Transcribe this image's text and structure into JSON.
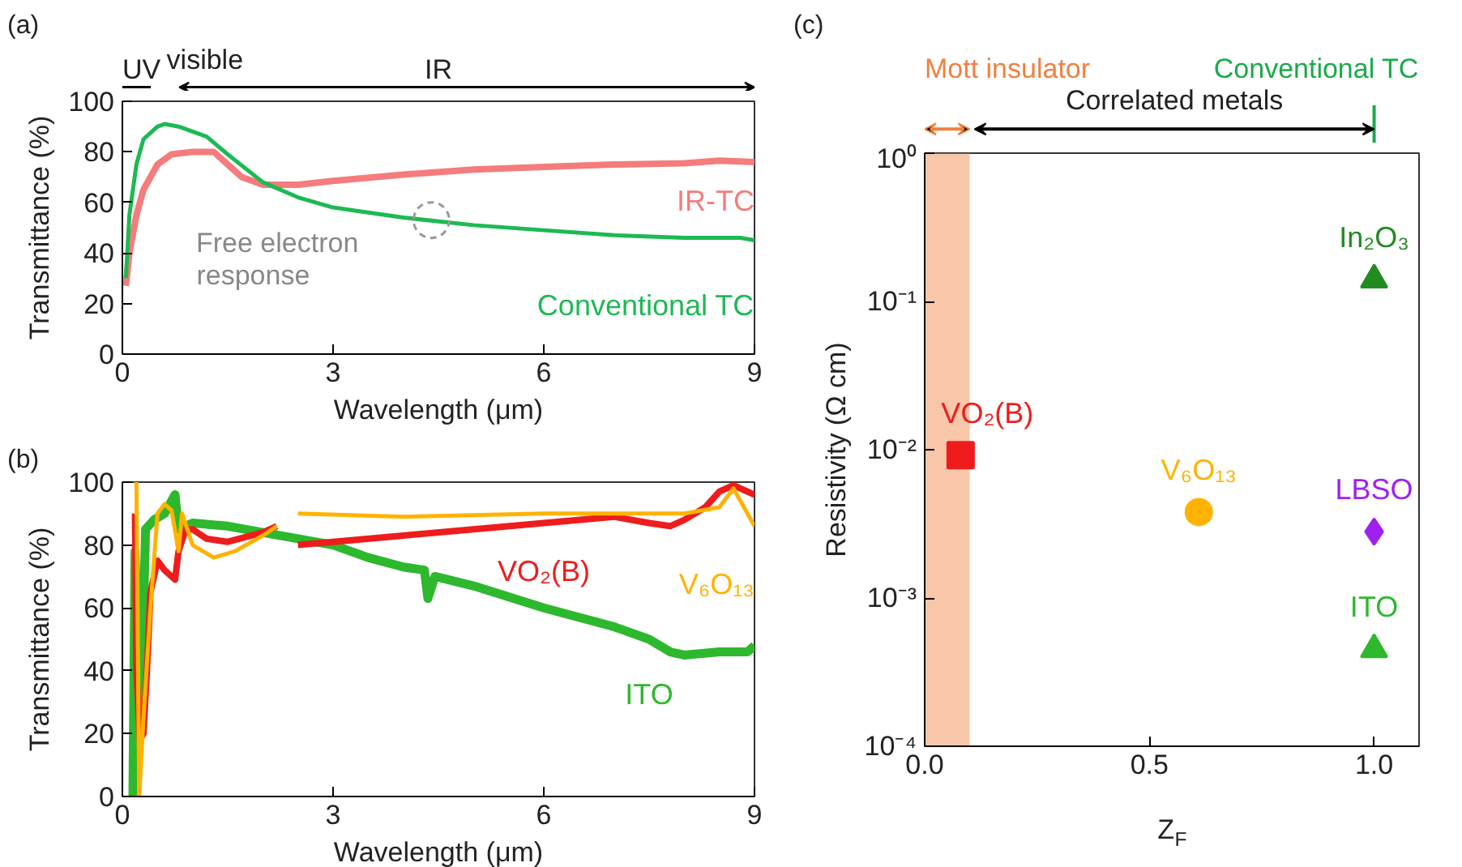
{
  "chart_data": [
    {
      "type": "line",
      "title": "(a)",
      "xlabel": "Wavelength (μm)",
      "ylabel": "Transmittance (%)",
      "xlim": [
        0,
        9
      ],
      "ylim": [
        0,
        100
      ],
      "xticks": [
        0,
        3,
        6,
        9
      ],
      "yticks": [
        0,
        20,
        40,
        60,
        80,
        100
      ],
      "grid": false,
      "legend": false,
      "annotations": [
        "UV",
        "visible",
        "IR",
        {
          "text": "Free electron response",
          "x": 4.4,
          "y": 53
        }
      ],
      "series": [
        {
          "name": "IR-TC",
          "color": "#f47c7c",
          "x": [
            0.05,
            0.1,
            0.2,
            0.3,
            0.5,
            0.7,
            1.0,
            1.3,
            1.5,
            1.7,
            2.0,
            2.5,
            3.0,
            4.0,
            5.0,
            6.0,
            7.0,
            8.0,
            8.5,
            9.0
          ],
          "values": [
            27,
            40,
            55,
            65,
            75,
            79,
            80,
            80,
            75,
            70,
            67,
            67,
            68.5,
            71,
            73,
            74,
            75,
            75.5,
            76.5,
            76
          ]
        },
        {
          "name": "Conventional TC",
          "color": "#1db954",
          "x": [
            0.05,
            0.1,
            0.2,
            0.3,
            0.5,
            0.6,
            0.8,
            1.0,
            1.2,
            1.5,
            2.0,
            2.5,
            3.0,
            4.0,
            5.0,
            6.0,
            7.0,
            8.0,
            8.8,
            9.0
          ],
          "values": [
            30,
            55,
            75,
            85,
            90,
            91,
            90,
            88,
            86,
            79,
            68,
            62,
            58,
            54,
            51,
            49,
            47,
            46,
            46,
            45
          ]
        }
      ]
    },
    {
      "type": "line",
      "title": "(b)",
      "xlabel": "Wavelength (μm)",
      "ylabel": "Transmittance (%)",
      "xlim": [
        0,
        9
      ],
      "ylim": [
        0,
        100
      ],
      "xticks": [
        0,
        3,
        6,
        9
      ],
      "yticks": [
        0,
        20,
        40,
        60,
        80,
        100
      ],
      "grid": false,
      "legend": false,
      "series": [
        {
          "name": "ITO",
          "color": "#2db82d",
          "x": [
            0.15,
            0.18,
            0.22,
            0.27,
            0.33,
            0.45,
            0.6,
            0.75,
            0.8,
            1.0,
            1.5,
            2.0,
            2.5,
            3.0,
            3.5,
            4.0,
            4.3,
            4.35,
            4.45,
            5.0,
            6.0,
            7.0,
            7.5,
            7.8,
            8.0,
            8.5,
            8.9,
            9.0
          ],
          "values": [
            0,
            78,
            40,
            30,
            85,
            88,
            90,
            96,
            85,
            87,
            86,
            84,
            82,
            80,
            76,
            73,
            72,
            63,
            70,
            67,
            60,
            54,
            50,
            46,
            45,
            46,
            46,
            48
          ]
        },
        {
          "name": "VO₂(B)",
          "color": "#ee1c1c",
          "x": [
            0.18,
            0.2,
            0.25,
            0.3,
            0.35,
            0.4,
            0.5,
            0.6,
            0.75,
            0.8,
            0.9,
            1.0,
            1.2,
            1.5,
            2.0,
            2.2,
            2.35,
            2.5,
            3.0,
            4.0,
            5.0,
            6.0,
            7.0,
            7.5,
            7.8,
            8.0,
            8.3,
            8.5,
            8.7,
            9.0
          ],
          "values": [
            90,
            40,
            18,
            20,
            40,
            65,
            75,
            72,
            69,
            78,
            85,
            85,
            82,
            81,
            84,
            86,
            null,
            80,
            81,
            83,
            85,
            87,
            89,
            87,
            86,
            88,
            92,
            97,
            99,
            96
          ]
        },
        {
          "name": "V₆O₁₃",
          "color": "#ffb300",
          "x": [
            0.2,
            0.24,
            0.3,
            0.4,
            0.5,
            0.6,
            0.7,
            0.8,
            0.85,
            1.0,
            1.3,
            1.6,
            2.0,
            2.2,
            2.35,
            2.5,
            4.0,
            6.0,
            8.0,
            8.5,
            8.7,
            9.0
          ],
          "values": [
            100,
            0,
            25,
            60,
            90,
            93,
            91,
            78,
            90,
            80,
            76,
            78,
            83,
            86,
            null,
            90,
            89,
            90,
            90,
            92,
            98,
            86
          ]
        }
      ]
    },
    {
      "type": "scatter",
      "title": "(c)",
      "xlabel": "Z$_{F}$",
      "ylabel": "Resistivity (Ω cm)",
      "log": "y",
      "xlim": [
        0,
        1.1
      ],
      "ylim": [
        0.0001,
        1
      ],
      "xticks": [
        {
          "value": 0,
          "label": "0.0"
        },
        {
          "value": 0.5,
          "label": "0.5"
        },
        {
          "value": 1,
          "label": "1.0"
        }
      ],
      "yticks": [
        {
          "value": 0.0001,
          "label": "10⁻⁴"
        },
        {
          "value": 0.001,
          "label": "10⁻³"
        },
        {
          "value": 0.01,
          "label": "10⁻²"
        },
        {
          "value": 0.1,
          "label": "10⁻¹"
        },
        {
          "value": 1,
          "label": "10⁰"
        }
      ],
      "grid": false,
      "legend": false,
      "annotations": [
        "Correlated metals"
      ],
      "bands": [
        {
          "axis": "x",
          "from": 0,
          "to": 0.1,
          "label": "Mott insulator",
          "color": "#f08040"
        }
      ],
      "ref_lines": [
        {
          "axis": "x",
          "value": 1.0,
          "label": "Conventional TC",
          "color": "#1aaa4a"
        }
      ],
      "series": [
        {
          "name": "VO₂(B)",
          "color": "#ee1c1c",
          "marker": "square",
          "x": [
            0.08
          ],
          "values": [
            0.0092
          ]
        },
        {
          "name": "V₆O₁₃",
          "color": "#ffb300",
          "marker": "circle",
          "x": [
            0.61
          ],
          "values": [
            0.0038
          ]
        },
        {
          "name": "In₂O₃",
          "color": "#238b23",
          "marker": "triangle",
          "x": [
            1.0
          ],
          "values": [
            0.14
          ]
        },
        {
          "name": "LBSO",
          "color": "#a020f0",
          "marker": "diamond",
          "x": [
            1.0
          ],
          "values": [
            0.0028
          ]
        },
        {
          "name": "ITO",
          "color": "#2db82d",
          "marker": "triangle",
          "x": [
            1.0
          ],
          "values": [
            0.00045
          ]
        }
      ]
    }
  ]
}
